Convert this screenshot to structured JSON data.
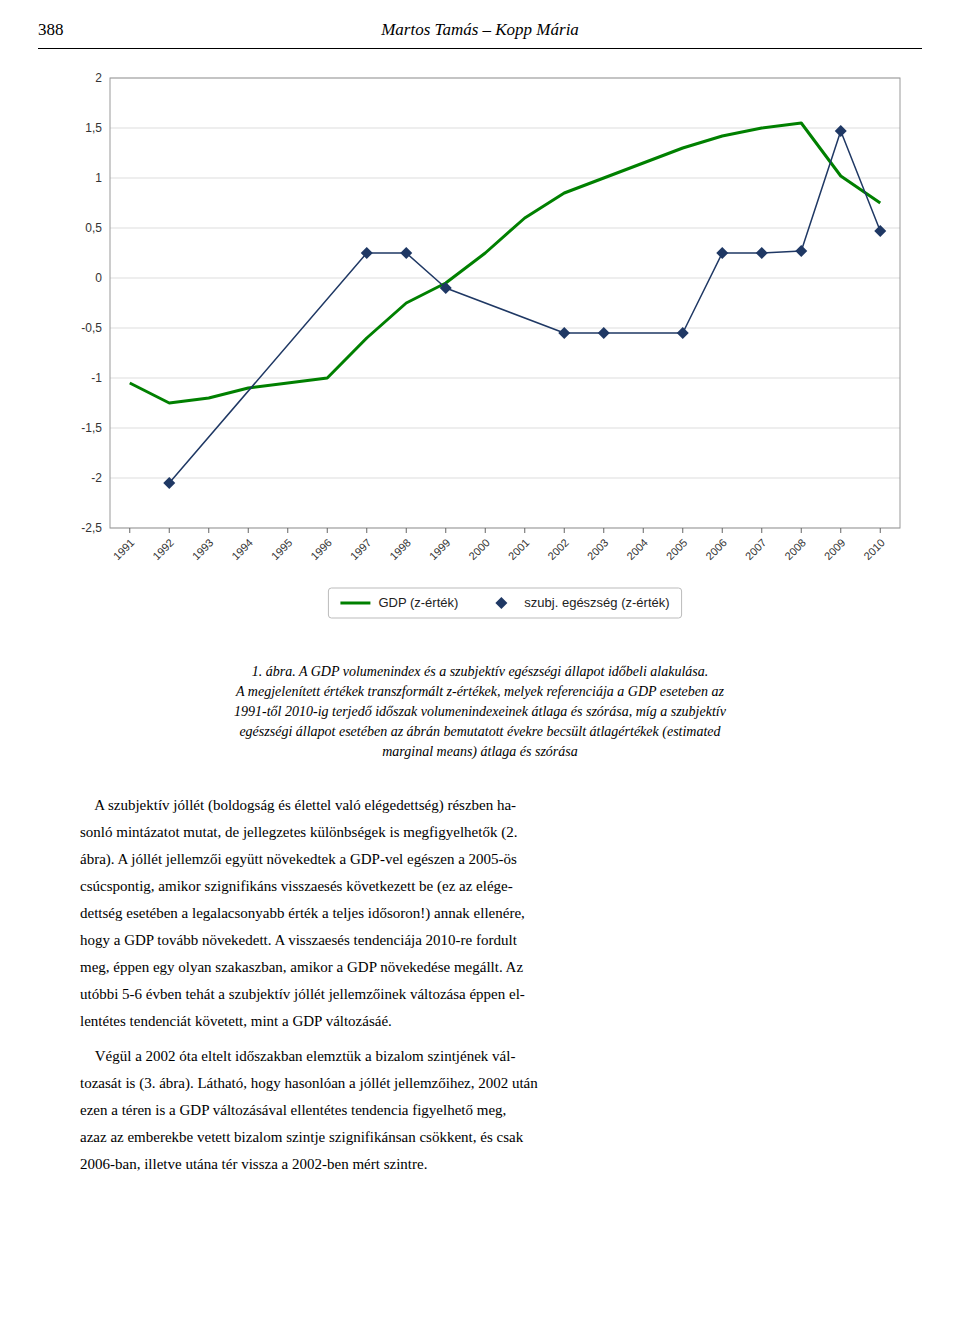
{
  "page_number": "388",
  "header_title": "Martos Tamás – Kopp Mária",
  "chart_data": {
    "type": "line",
    "xlim": [
      1990.5,
      2010.5
    ],
    "xticks": [
      1991,
      1992,
      1993,
      1994,
      1995,
      1996,
      1997,
      1998,
      1999,
      2000,
      2001,
      2002,
      2003,
      2004,
      2005,
      2006,
      2007,
      2008,
      2009,
      2010
    ],
    "ylim": [
      -2.5,
      2.0
    ],
    "yticks": [
      {
        "value": -2.5,
        "label": "-2,5"
      },
      -2,
      {
        "value": -1.5,
        "label": "-1,5"
      },
      -1,
      {
        "value": -0.5,
        "label": "-0,5"
      },
      0,
      {
        "value": 0.5,
        "label": "0,5"
      },
      1,
      {
        "value": 1.5,
        "label": "1,5"
      },
      2
    ],
    "grid": true,
    "legend": "bottom",
    "series": [
      {
        "name": "GDP (z-érték)",
        "color": "#008000",
        "line_style": "solid",
        "x": [
          1991,
          1992,
          1993,
          1994,
          1995,
          1996,
          1997,
          1998,
          1999,
          2000,
          2001,
          2002,
          2003,
          2004,
          2005,
          2006,
          2007,
          2008,
          2009,
          2010
        ],
        "values": [
          -1.05,
          -1.25,
          -1.2,
          -1.1,
          -1.05,
          -1.0,
          -0.6,
          -0.25,
          -0.05,
          0.25,
          0.6,
          0.85,
          1.0,
          1.15,
          1.3,
          1.42,
          1.5,
          1.55,
          1.02,
          0.75
        ]
      },
      {
        "name": "szubj. egészség (z-érték)",
        "color": "#1F3864",
        "marker": "diamond",
        "line_style": "solid",
        "x": [
          1992,
          1997,
          1998,
          1999,
          2002,
          2003,
          2005,
          2006,
          2007,
          2008,
          2009,
          2010
        ],
        "values": [
          -2.05,
          0.25,
          0.25,
          -0.1,
          -0.55,
          -0.55,
          -0.55,
          0.25,
          0.25,
          0.27,
          1.47,
          0.47
        ]
      }
    ]
  },
  "caption": [
    "1. ábra. A GDP volumenindex és a szubjektív egészségi állapot időbeli alakulása.",
    "A megjelenített értékek transzformált z-értékek, melyek referenciája a GDP eseteben az",
    "1991-től 2010-ig terjedő időszak volumenindexeinek átlaga és szórása, míg a szubjektív",
    "egészségi állapot esetében az ábrán bemutatott évekre becsült átlagértékek (estimated",
    "marginal means) átlaga és szórása"
  ],
  "body": [
    [
      "    A szubjektív jóllét (boldogság és élettel való elégedettség) részben ha-",
      "sonló mintázatot mutat, de jellegzetes különbségek is megfigyelhetők (2.",
      "ábra). A jóllét jellemzői együtt növekedtek a GDP-vel egészen a 2005-ös",
      "csúcspontig, amikor szignifikáns visszaesés következett be (ez az elége-",
      "dettség esetében a legalacsonyabb érték a teljes idősoron!) annak ellenére,",
      "hogy a GDP tovább növekedett. A visszaesés tendenciája 2010-re fordult",
      "meg, éppen egy olyan szakaszban, amikor a GDP növekedése megállt. Az",
      "utóbbi 5-6 évben tehát a szubjektív jóllét jellemzőinek változása éppen el-",
      "lentétes tendenciát követett, mint a GDP változásáé."
    ],
    [
      "    Végül a 2002 óta eltelt időszakban elemztük a bizalom szintjének vál-",
      "tozasát is (3. ábra). Látható, hogy hasonlóan a jóllét jellemzőihez, 2002 után",
      "ezen a téren is a GDP változásával ellentétes tendencia figyelhető meg,",
      "azaz az emberekbe vetett bizalom szintje szignifikánsan csökkent, és csak",
      "2006-ban, illetve utána tér vissza a 2002-ben mért szintre."
    ]
  ]
}
